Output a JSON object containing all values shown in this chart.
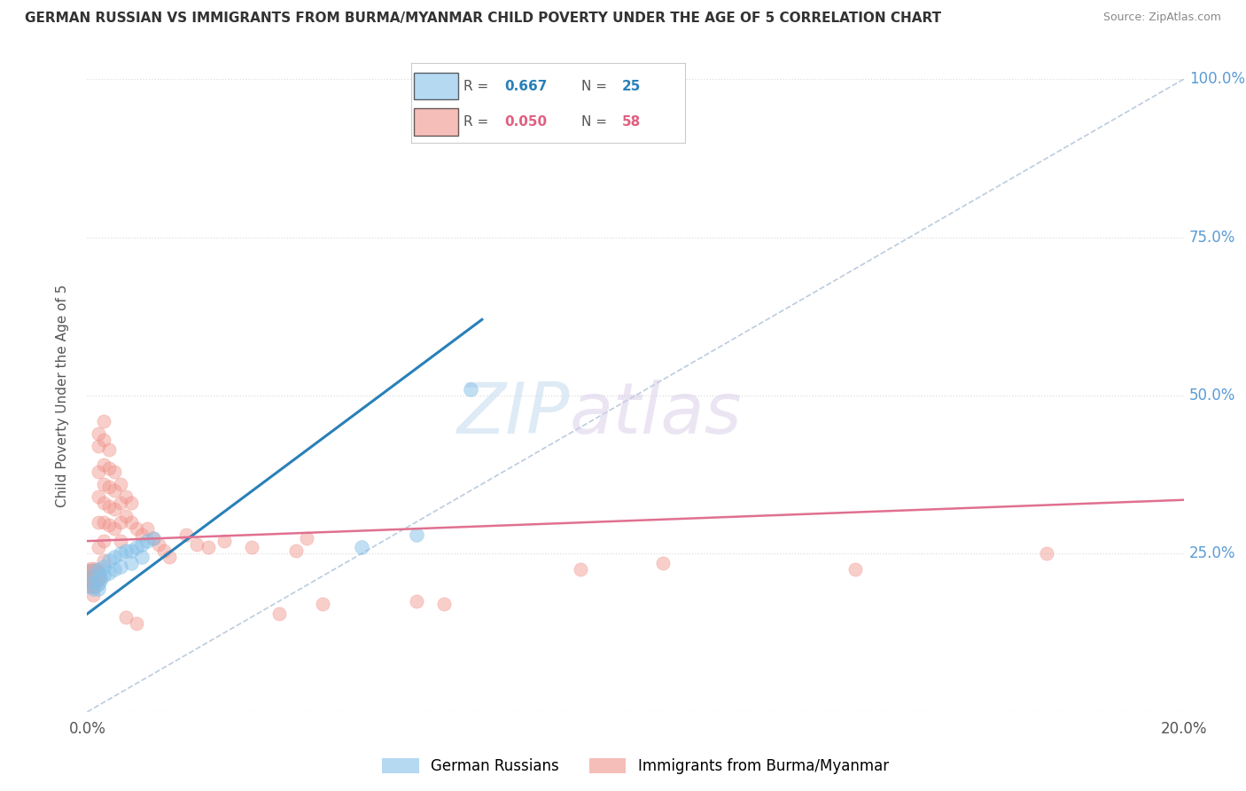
{
  "title": "GERMAN RUSSIAN VS IMMIGRANTS FROM BURMA/MYANMAR CHILD POVERTY UNDER THE AGE OF 5 CORRELATION CHART",
  "source": "Source: ZipAtlas.com",
  "ylabel": "Child Poverty Under the Age of 5",
  "xmin": 0.0,
  "xmax": 0.2,
  "ymin": 0.0,
  "ymax": 1.0,
  "R_blue": 0.667,
  "N_blue": 25,
  "R_pink": 0.05,
  "N_pink": 58,
  "blue_color": "#85c1e9",
  "pink_color": "#f1948a",
  "blue_line_color": "#2980b9",
  "pink_line_color": "#e07090",
  "diagonal_color": "#b0c4d8",
  "legend_label_blue": "German Russians",
  "legend_label_pink": "Immigrants from Burma/Myanmar",
  "watermark_zip": "ZIP",
  "watermark_atlas": "atlas",
  "blue_scatter": [
    [
      0.001,
      0.215
    ],
    [
      0.001,
      0.205
    ],
    [
      0.001,
      0.195
    ],
    [
      0.002,
      0.225
    ],
    [
      0.002,
      0.21
    ],
    [
      0.002,
      0.195
    ],
    [
      0.003,
      0.23
    ],
    [
      0.003,
      0.215
    ],
    [
      0.004,
      0.24
    ],
    [
      0.004,
      0.22
    ],
    [
      0.005,
      0.245
    ],
    [
      0.005,
      0.225
    ],
    [
      0.006,
      0.25
    ],
    [
      0.006,
      0.23
    ],
    [
      0.007,
      0.255
    ],
    [
      0.008,
      0.255
    ],
    [
      0.008,
      0.235
    ],
    [
      0.009,
      0.26
    ],
    [
      0.01,
      0.265
    ],
    [
      0.01,
      0.245
    ],
    [
      0.011,
      0.27
    ],
    [
      0.012,
      0.275
    ],
    [
      0.05,
      0.26
    ],
    [
      0.06,
      0.28
    ],
    [
      0.07,
      0.51
    ]
  ],
  "pink_scatter": [
    [
      0.001,
      0.215
    ],
    [
      0.001,
      0.2
    ],
    [
      0.001,
      0.185
    ],
    [
      0.002,
      0.44
    ],
    [
      0.002,
      0.42
    ],
    [
      0.002,
      0.38
    ],
    [
      0.002,
      0.34
    ],
    [
      0.002,
      0.3
    ],
    [
      0.002,
      0.26
    ],
    [
      0.003,
      0.46
    ],
    [
      0.003,
      0.43
    ],
    [
      0.003,
      0.39
    ],
    [
      0.003,
      0.36
    ],
    [
      0.003,
      0.33
    ],
    [
      0.003,
      0.3
    ],
    [
      0.003,
      0.27
    ],
    [
      0.003,
      0.24
    ],
    [
      0.004,
      0.415
    ],
    [
      0.004,
      0.385
    ],
    [
      0.004,
      0.355
    ],
    [
      0.004,
      0.325
    ],
    [
      0.004,
      0.295
    ],
    [
      0.005,
      0.38
    ],
    [
      0.005,
      0.35
    ],
    [
      0.005,
      0.32
    ],
    [
      0.005,
      0.29
    ],
    [
      0.006,
      0.36
    ],
    [
      0.006,
      0.33
    ],
    [
      0.006,
      0.3
    ],
    [
      0.006,
      0.27
    ],
    [
      0.007,
      0.34
    ],
    [
      0.007,
      0.31
    ],
    [
      0.007,
      0.15
    ],
    [
      0.008,
      0.33
    ],
    [
      0.008,
      0.3
    ],
    [
      0.009,
      0.29
    ],
    [
      0.009,
      0.14
    ],
    [
      0.01,
      0.28
    ],
    [
      0.011,
      0.29
    ],
    [
      0.012,
      0.275
    ],
    [
      0.013,
      0.265
    ],
    [
      0.014,
      0.255
    ],
    [
      0.015,
      0.245
    ],
    [
      0.018,
      0.28
    ],
    [
      0.02,
      0.265
    ],
    [
      0.022,
      0.26
    ],
    [
      0.025,
      0.27
    ],
    [
      0.03,
      0.26
    ],
    [
      0.035,
      0.155
    ],
    [
      0.038,
      0.255
    ],
    [
      0.04,
      0.275
    ],
    [
      0.043,
      0.17
    ],
    [
      0.06,
      0.175
    ],
    [
      0.065,
      0.17
    ],
    [
      0.09,
      0.225
    ],
    [
      0.105,
      0.235
    ],
    [
      0.14,
      0.225
    ],
    [
      0.175,
      0.25
    ]
  ],
  "blue_line_x0": 0.0,
  "blue_line_y0": 0.155,
  "blue_line_x1": 0.072,
  "blue_line_y1": 0.62,
  "pink_line_x0": 0.0,
  "pink_line_y0": 0.27,
  "pink_line_x1": 0.2,
  "pink_line_y1": 0.335
}
